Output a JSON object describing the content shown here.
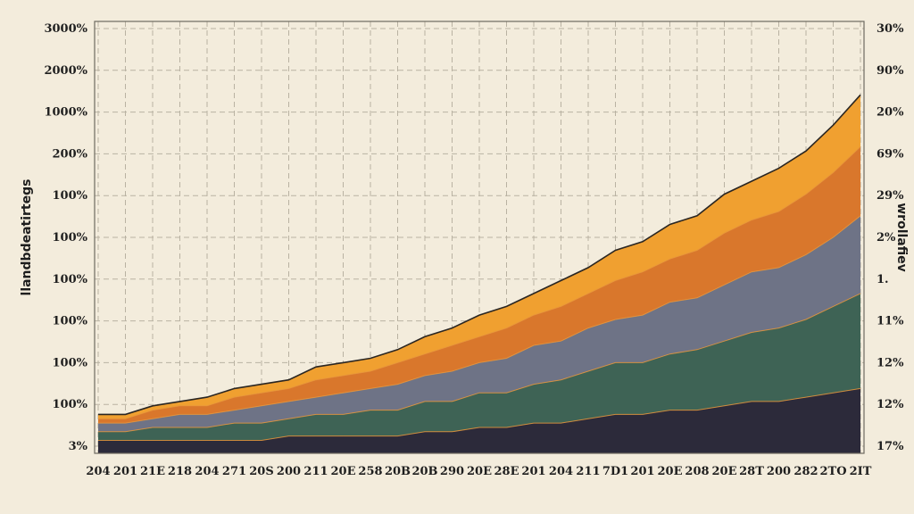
{
  "chart_data": {
    "type": "area",
    "stacked": true,
    "grid": true,
    "ylabel": "llandbdeatirtegs",
    "ylabel_right": "wrollafiev",
    "y_ticks_left": [
      "3000%",
      "2000%",
      "1000%",
      "200%",
      "100%",
      "100%",
      "100%",
      "100%",
      "100%",
      "100%",
      "3%"
    ],
    "y_ticks_right": [
      "30%",
      "90%",
      "20%",
      "69%",
      "29%",
      "2%",
      "1.",
      "11%",
      "12%",
      "12%",
      "17%"
    ],
    "x_ticks": [
      "204",
      "201",
      "21E",
      "218",
      "204",
      "271",
      "20S",
      "200",
      "211",
      "20E",
      "258",
      "20B",
      "20B",
      "290",
      "20E",
      "28E",
      "201",
      "204",
      "211",
      "7D1",
      "201",
      "20E",
      "208",
      "20E",
      "28T",
      "200",
      "282",
      "2TO",
      "2IT"
    ],
    "ylim": [
      0,
      100
    ],
    "series": [
      {
        "color": "#2c2a3a",
        "values": [
          3,
          3,
          3,
          3,
          3,
          3,
          3,
          4,
          4,
          4,
          4,
          4,
          5,
          5,
          6,
          6,
          7,
          7,
          8,
          9,
          9,
          10,
          10,
          11,
          12,
          12,
          13,
          14,
          15
        ]
      },
      {
        "color": "#3e6355",
        "values": [
          2,
          2,
          3,
          3,
          3,
          4,
          4,
          4,
          5,
          5,
          6,
          6,
          7,
          7,
          8,
          8,
          9,
          10,
          11,
          12,
          12,
          13,
          14,
          15,
          16,
          17,
          18,
          20,
          22
        ]
      },
      {
        "color": "#6e7386",
        "values": [
          2,
          2,
          2,
          3,
          3,
          3,
          4,
          4,
          4,
          5,
          5,
          6,
          6,
          7,
          7,
          8,
          9,
          9,
          10,
          10,
          11,
          12,
          12,
          13,
          14,
          14,
          15,
          16,
          18
        ]
      },
      {
        "color": "#d9772c",
        "values": [
          1,
          1,
          2,
          2,
          2,
          3,
          3,
          3,
          4,
          4,
          4,
          5,
          5,
          6,
          6,
          7,
          7,
          8,
          8,
          9,
          10,
          10,
          11,
          12,
          12,
          13,
          14,
          15,
          16
        ]
      },
      {
        "color": "#f0a030",
        "values": [
          1,
          1,
          1,
          1,
          2,
          2,
          2,
          2,
          3,
          3,
          3,
          3,
          4,
          4,
          5,
          5,
          5,
          6,
          6,
          7,
          7,
          8,
          8,
          9,
          9,
          10,
          10,
          11,
          12
        ]
      }
    ]
  }
}
